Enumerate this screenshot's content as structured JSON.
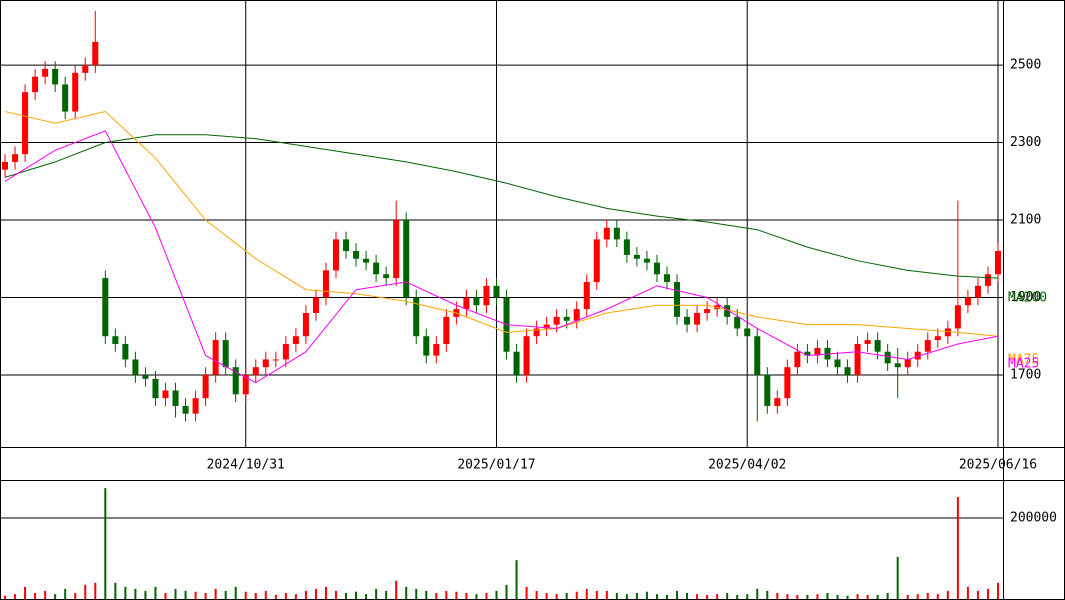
{
  "chart_data": {
    "type": "candlestick",
    "categories": [
      null,
      null,
      null,
      null,
      null,
      null,
      null,
      null,
      null,
      null,
      null,
      null,
      null,
      null,
      null,
      null,
      null,
      null,
      null,
      null,
      null,
      null,
      null,
      null,
      "2024/10/31",
      null,
      null,
      null,
      null,
      null,
      null,
      null,
      null,
      null,
      null,
      null,
      null,
      null,
      null,
      null,
      null,
      null,
      null,
      null,
      null,
      null,
      null,
      null,
      null,
      "2025/01/17",
      null,
      null,
      null,
      null,
      null,
      null,
      null,
      null,
      null,
      null,
      null,
      null,
      null,
      null,
      null,
      null,
      null,
      null,
      null,
      null,
      null,
      null,
      null,
      null,
      "2025/04/02",
      null,
      null,
      null,
      null,
      null,
      null,
      null,
      null,
      null,
      null,
      null,
      null,
      null,
      null,
      null,
      null,
      null,
      null,
      null,
      null,
      null,
      null,
      null,
      null,
      "2025/06/16"
    ],
    "open": [
      2230,
      2250,
      2270,
      2430,
      2470,
      2490,
      2450,
      2380,
      2480,
      2500,
      1950,
      1800,
      1780,
      1740,
      1700,
      1690,
      1640,
      1660,
      1620,
      1600,
      1640,
      1700,
      1790,
      1720,
      1650,
      1700,
      1720,
      1740,
      1740,
      1780,
      1800,
      1860,
      1900,
      1970,
      2050,
      2020,
      2000,
      1990,
      1960,
      1950,
      2100,
      1900,
      1800,
      1750,
      1780,
      1850,
      1870,
      1900,
      1880,
      1930,
      1900,
      1760,
      1700,
      1800,
      1820,
      1830,
      1850,
      1840,
      1870,
      1940,
      2050,
      2080,
      2050,
      2010,
      2000,
      1990,
      1960,
      1940,
      1850,
      1830,
      1860,
      1870,
      1880,
      1850,
      1820,
      1800,
      1700,
      1620,
      1640,
      1720,
      1760,
      1750,
      1770,
      1740,
      1720,
      1700,
      1780,
      1790,
      1760,
      1730,
      1720,
      1740,
      1760,
      1790,
      1800,
      1820,
      1880,
      1900,
      1930,
      1960
    ],
    "high": [
      2270,
      2290,
      2450,
      2490,
      2510,
      2510,
      2470,
      2500,
      2520,
      2640,
      1970,
      1820,
      1800,
      1760,
      1720,
      1710,
      1680,
      1680,
      1640,
      1660,
      1720,
      1810,
      1810,
      1740,
      1720,
      1740,
      1760,
      1760,
      1800,
      1820,
      1880,
      1920,
      1990,
      2070,
      2070,
      2040,
      2020,
      2010,
      1980,
      2150,
      2120,
      1920,
      1820,
      1800,
      1870,
      1890,
      1920,
      1920,
      1950,
      1950,
      1920,
      1780,
      1820,
      1840,
      1850,
      1870,
      1870,
      1890,
      1960,
      2070,
      2100,
      2100,
      2070,
      2030,
      2020,
      2010,
      1980,
      1960,
      1870,
      1880,
      1890,
      1900,
      1900,
      1870,
      1840,
      1820,
      1720,
      1660,
      1740,
      1780,
      1780,
      1790,
      1790,
      1760,
      1740,
      1800,
      1810,
      1810,
      1780,
      1770,
      1760,
      1780,
      1810,
      1820,
      1840,
      2150,
      1920,
      1950,
      1980,
      2040
    ],
    "low": [
      2210,
      2230,
      2250,
      2410,
      2450,
      2430,
      2360,
      2360,
      2460,
      2480,
      1780,
      1760,
      1720,
      1680,
      1670,
      1620,
      1620,
      1590,
      1580,
      1580,
      1620,
      1680,
      1700,
      1630,
      1630,
      1680,
      1700,
      1720,
      1720,
      1760,
      1780,
      1840,
      1880,
      1950,
      2000,
      1980,
      1970,
      1940,
      1930,
      1930,
      1880,
      1780,
      1730,
      1730,
      1760,
      1830,
      1850,
      1860,
      1860,
      1880,
      1740,
      1680,
      1680,
      1780,
      1800,
      1810,
      1820,
      1820,
      1850,
      1920,
      2030,
      2030,
      1990,
      1980,
      1970,
      1940,
      1920,
      1830,
      1810,
      1810,
      1840,
      1850,
      1830,
      1800,
      1780,
      1580,
      1600,
      1600,
      1620,
      1700,
      1730,
      1730,
      1720,
      1700,
      1680,
      1680,
      1760,
      1740,
      1710,
      1640,
      1700,
      1720,
      1740,
      1770,
      1780,
      1800,
      1860,
      1880,
      1910,
      1940
    ],
    "close": [
      2250,
      2270,
      2430,
      2470,
      2490,
      2450,
      2380,
      2480,
      2500,
      2560,
      1800,
      1780,
      1740,
      1700,
      1690,
      1640,
      1660,
      1620,
      1600,
      1640,
      1700,
      1790,
      1720,
      1650,
      1700,
      1720,
      1740,
      1740,
      1780,
      1800,
      1860,
      1900,
      1970,
      2050,
      2020,
      2000,
      1990,
      1960,
      1950,
      2100,
      1900,
      1800,
      1750,
      1780,
      1850,
      1870,
      1900,
      1880,
      1930,
      1900,
      1760,
      1700,
      1800,
      1820,
      1830,
      1850,
      1840,
      1870,
      1940,
      2050,
      2080,
      2050,
      2010,
      2000,
      1990,
      1960,
      1940,
      1850,
      1830,
      1860,
      1870,
      1880,
      1850,
      1820,
      1800,
      1700,
      1620,
      1640,
      1720,
      1760,
      1750,
      1770,
      1740,
      1720,
      1700,
      1780,
      1790,
      1760,
      1730,
      1720,
      1740,
      1760,
      1790,
      1800,
      1820,
      1880,
      1900,
      1930,
      1960,
      2020
    ],
    "up_color": "#ff0000",
    "down_color": "#006400",
    "ylim": [
      1514,
      2668
    ],
    "yticks": [
      1700,
      1900,
      2100,
      2300,
      2500
    ],
    "grid": true,
    "ma": [
      {
        "name": "MA200",
        "color": "#006400",
        "x": [
          0,
          5,
          10,
          15,
          20,
          25,
          30,
          35,
          40,
          45,
          50,
          55,
          60,
          65,
          70,
          75,
          80,
          85,
          90,
          95,
          99
        ],
        "values": [
          2210,
          2250,
          2300,
          2320,
          2320,
          2310,
          2290,
          2270,
          2250,
          2225,
          2195,
          2160,
          2130,
          2110,
          2095,
          2075,
          2030,
          1995,
          1970,
          1955,
          1950
        ]
      },
      {
        "name": "MA75",
        "color": "#ffa500",
        "x": [
          0,
          5,
          10,
          15,
          20,
          25,
          30,
          35,
          40,
          45,
          50,
          55,
          60,
          65,
          70,
          75,
          80,
          85,
          90,
          95,
          99
        ],
        "values": [
          2380,
          2350,
          2380,
          2260,
          2100,
          2000,
          1920,
          1910,
          1890,
          1860,
          1810,
          1820,
          1860,
          1880,
          1880,
          1850,
          1830,
          1830,
          1820,
          1810,
          1800
        ]
      },
      {
        "name": "MA25",
        "color": "#ff00ff",
        "x": [
          0,
          5,
          10,
          15,
          20,
          25,
          30,
          35,
          40,
          45,
          50,
          55,
          60,
          65,
          70,
          75,
          80,
          85,
          90,
          95,
          99
        ],
        "values": [
          2200,
          2280,
          2330,
          2080,
          1750,
          1680,
          1760,
          1920,
          1940,
          1880,
          1830,
          1820,
          1870,
          1930,
          1900,
          1820,
          1750,
          1760,
          1740,
          1780,
          1800
        ]
      }
    ],
    "volume": {
      "values": [
        8000,
        12000,
        30000,
        15000,
        20000,
        12000,
        25000,
        15000,
        35000,
        40000,
        274000,
        40000,
        30000,
        25000,
        20000,
        30000,
        15000,
        25000,
        20000,
        18000,
        15000,
        25000,
        20000,
        30000,
        18000,
        15000,
        20000,
        10000,
        15000,
        12000,
        20000,
        25000,
        30000,
        20000,
        15000,
        18000,
        12000,
        25000,
        20000,
        45000,
        30000,
        25000,
        20000,
        15000,
        20000,
        18000,
        15000,
        12000,
        15000,
        20000,
        35000,
        96000,
        30000,
        20000,
        15000,
        12000,
        15000,
        18000,
        25000,
        20000,
        20000,
        15000,
        12000,
        15000,
        18000,
        12000,
        10000,
        20000,
        15000,
        12000,
        10000,
        12000,
        15000,
        10000,
        12000,
        25000,
        20000,
        15000,
        12000,
        10000,
        10000,
        12000,
        15000,
        10000,
        8000,
        12000,
        10000,
        10000,
        15000,
        104000,
        10000,
        12000,
        15000,
        12000,
        20000,
        252000,
        30000,
        20000,
        25000,
        40000
      ],
      "ylim": [
        0,
        294000
      ],
      "yticks": [
        200000
      ]
    }
  }
}
